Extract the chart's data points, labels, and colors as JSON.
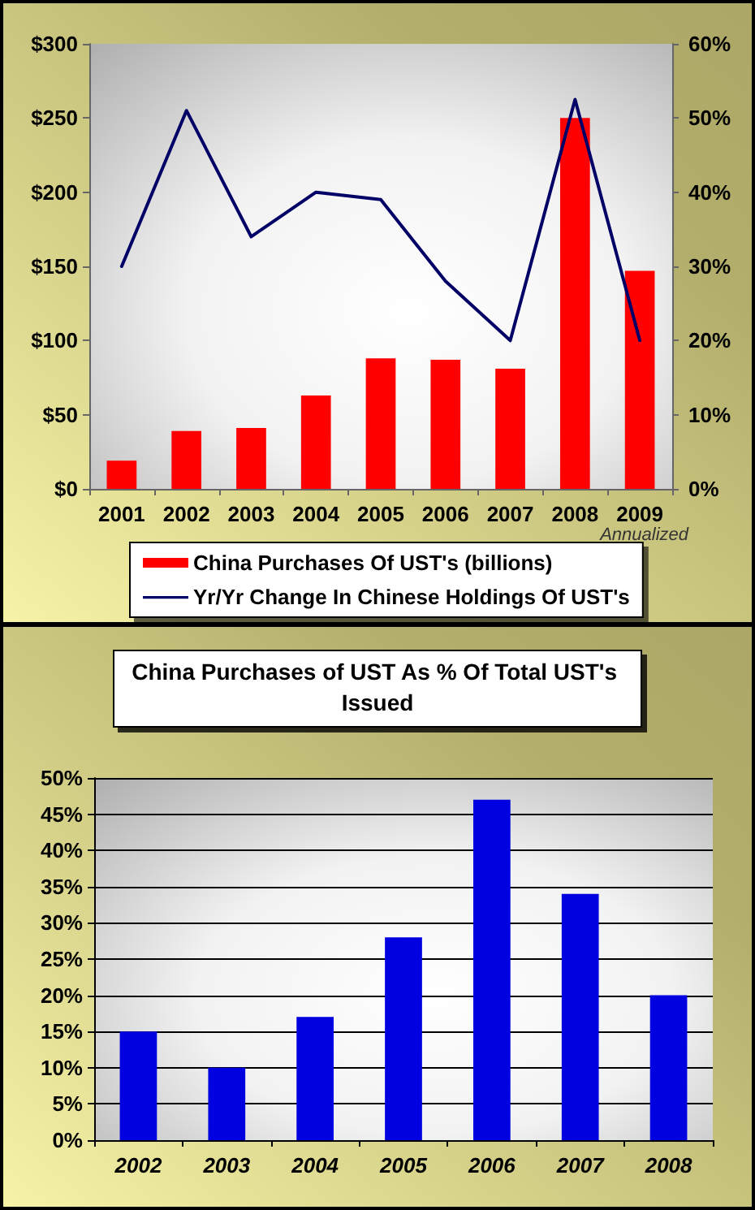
{
  "chart_data": [
    {
      "type": "bar",
      "categories": [
        "2001",
        "2002",
        "2003",
        "2004",
        "2005",
        "2006",
        "2007",
        "2008",
        "2009"
      ],
      "series": [
        {
          "name": "China Purchases Of UST's (billions)",
          "color": "#ff0000",
          "values": [
            19,
            39,
            41,
            63,
            88,
            87,
            81,
            250,
            147
          ]
        },
        {
          "name": "Yr/Yr Change In Chinese Holdings Of UST's",
          "type": "line",
          "axis": "y2",
          "color": "#000066",
          "values": [
            30,
            51,
            34,
            40,
            39,
            28,
            20,
            52.5,
            20
          ]
        }
      ],
      "ylim": [
        0,
        300
      ],
      "yticks": [
        {
          "value": 0,
          "label": "$0"
        },
        {
          "value": 50,
          "label": "$50"
        },
        {
          "value": 100,
          "label": "$100"
        },
        {
          "value": 150,
          "label": "$150"
        },
        {
          "value": 200,
          "label": "$200"
        },
        {
          "value": 250,
          "label": "$250"
        },
        {
          "value": 300,
          "label": "$300"
        }
      ],
      "y2lim": [
        0,
        60
      ],
      "y2ticks": [
        {
          "value": 0,
          "label": "0%"
        },
        {
          "value": 10,
          "label": "10%"
        },
        {
          "value": 20,
          "label": "20%"
        },
        {
          "value": 30,
          "label": "30%"
        },
        {
          "value": 40,
          "label": "40%"
        },
        {
          "value": 50,
          "label": "50%"
        },
        {
          "value": 60,
          "label": "60%"
        }
      ],
      "legend": "bottom",
      "marker": "none",
      "line_style": "solid",
      "annotations": [
        "Annualized"
      ]
    },
    {
      "type": "bar",
      "title": "China Purchases of UST As % Of Total UST's Issued",
      "categories": [
        "2002",
        "2003",
        "2004",
        "2005",
        "2006",
        "2007",
        "2008"
      ],
      "values": [
        15,
        10,
        17,
        28,
        47,
        34,
        20
      ],
      "color": "#0000e0",
      "ylim": [
        0,
        50
      ],
      "yticks": [
        {
          "value": 0,
          "label": "0%"
        },
        {
          "value": 5,
          "label": "5%"
        },
        {
          "value": 10,
          "label": "10%"
        },
        {
          "value": 15,
          "label": "15%"
        },
        {
          "value": 20,
          "label": "20%"
        },
        {
          "value": 25,
          "label": "25%"
        },
        {
          "value": 30,
          "label": "30%"
        },
        {
          "value": 35,
          "label": "35%"
        },
        {
          "value": 40,
          "label": "40%"
        },
        {
          "value": 45,
          "label": "45%"
        },
        {
          "value": 50,
          "label": "50%"
        }
      ],
      "grid": "y"
    }
  ]
}
